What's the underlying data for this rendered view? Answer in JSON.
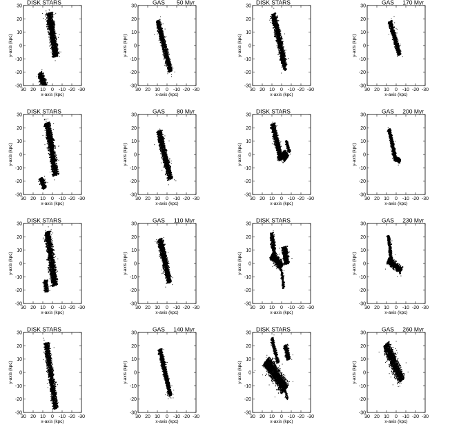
{
  "figure": {
    "rows": 4,
    "cols": 4
  },
  "chart_data": [
    {
      "type": "scatter",
      "panel_title": "DISK STARS",
      "time_label": "",
      "xlabel": "x-axis (kpc)",
      "ylabel": "y-axis (kpc)",
      "xlim": [
        30,
        -30
      ],
      "ylim": [
        -30,
        30
      ],
      "xticks": [
        30,
        20,
        10,
        0,
        -10,
        -20,
        -30
      ],
      "yticks": [
        -30,
        -20,
        -10,
        0,
        10,
        20,
        30
      ],
      "color": "#000000",
      "blobs": [
        {
          "x0": 3,
          "y0": 23,
          "x1": -3,
          "y1": -7,
          "width": 8,
          "count": 1400
        },
        {
          "x0": 13,
          "y0": -21,
          "x1": 8,
          "y1": -30,
          "width": 7,
          "count": 400
        }
      ]
    },
    {
      "type": "scatter",
      "panel_title": "GAS",
      "time_label": "50 Myr",
      "xlabel": "x-axis (kpc)",
      "ylabel": "y-axis (kpc)",
      "xlim": [
        30,
        -30
      ],
      "ylim": [
        -30,
        30
      ],
      "xticks": [
        30,
        20,
        10,
        0,
        -10,
        -20,
        -30
      ],
      "yticks": [
        -30,
        -20,
        -10,
        0,
        10,
        20,
        30
      ],
      "color": "#000000",
      "blobs": [
        {
          "x0": 9,
          "y0": 17,
          "x1": -3,
          "y1": -18,
          "width": 6,
          "count": 1200
        }
      ]
    },
    {
      "type": "scatter",
      "panel_title": "DISK STARS",
      "time_label": "",
      "xlabel": "x-axis (kpc)",
      "ylabel": "y-axis (kpc)",
      "xlim": [
        30,
        -30
      ],
      "ylim": [
        -30,
        30
      ],
      "xticks": [
        30,
        20,
        10,
        0,
        -10,
        -20,
        -30
      ],
      "yticks": [
        -30,
        -20,
        -10,
        0,
        10,
        20,
        30
      ],
      "color": "#000000",
      "blobs": [
        {
          "x0": 8,
          "y0": 22,
          "x1": -3,
          "y1": -14,
          "width": 7,
          "count": 1300
        },
        {
          "x0": 1,
          "y0": -10,
          "x1": -4,
          "y1": -18,
          "width": 3,
          "count": 150
        }
      ]
    },
    {
      "type": "scatter",
      "panel_title": "GAS",
      "time_label": "170 Myr",
      "xlabel": "x-axis (kpc)",
      "ylabel": "y-axis (kpc)",
      "xlim": [
        30,
        -30
      ],
      "ylim": [
        -30,
        30
      ],
      "xticks": [
        30,
        20,
        10,
        0,
        -10,
        -20,
        -30
      ],
      "yticks": [
        -30,
        -20,
        -10,
        0,
        10,
        20,
        30
      ],
      "color": "#000000",
      "blobs": [
        {
          "x0": 6,
          "y0": 17,
          "x1": -3,
          "y1": -6,
          "width": 5,
          "count": 900
        }
      ]
    },
    {
      "type": "scatter",
      "panel_title": "DISK STARS",
      "time_label": "",
      "xlabel": "x-axis (kpc)",
      "ylabel": "y-axis (kpc)",
      "xlim": [
        30,
        -30
      ],
      "ylim": [
        -30,
        30
      ],
      "xticks": [
        30,
        20,
        10,
        0,
        -10,
        -20,
        -30
      ],
      "yticks": [
        -30,
        -20,
        -10,
        0,
        10,
        20,
        30
      ],
      "color": "#000000",
      "blobs": [
        {
          "x0": 5,
          "y0": 22,
          "x1": -3,
          "y1": -14,
          "width": 8,
          "count": 1400
        },
        {
          "x0": 12,
          "y0": -18,
          "x1": 8,
          "y1": -25,
          "width": 6,
          "count": 300
        }
      ]
    },
    {
      "type": "scatter",
      "panel_title": "GAS",
      "time_label": "80 Myr",
      "xlabel": "x-axis (kpc)",
      "ylabel": "y-axis (kpc)",
      "xlim": [
        30,
        -30
      ],
      "ylim": [
        -30,
        30
      ],
      "xticks": [
        30,
        20,
        10,
        0,
        -10,
        -20,
        -30
      ],
      "yticks": [
        -30,
        -20,
        -10,
        0,
        10,
        20,
        30
      ],
      "color": "#000000",
      "blobs": [
        {
          "x0": 8,
          "y0": 16,
          "x1": -3,
          "y1": -17,
          "width": 7,
          "count": 1300
        }
      ]
    },
    {
      "type": "scatter",
      "panel_title": "DISK STARS",
      "time_label": "",
      "xlabel": "x-axis (kpc)",
      "ylabel": "y-axis (kpc)",
      "xlim": [
        30,
        -30
      ],
      "ylim": [
        -30,
        30
      ],
      "xticks": [
        30,
        20,
        10,
        0,
        -10,
        -20,
        -30
      ],
      "yticks": [
        -30,
        -20,
        -10,
        0,
        10,
        20,
        30
      ],
      "color": "#000000",
      "blobs": [
        {
          "x0": 9,
          "y0": 22,
          "x1": 1,
          "y1": -3,
          "width": 6,
          "count": 900
        },
        {
          "x0": -1,
          "y0": 1,
          "x1": -5,
          "y1": -3,
          "width": 8,
          "count": 600
        },
        {
          "x0": -5,
          "y0": 10,
          "x1": -8,
          "y1": 2,
          "width": 3,
          "count": 150
        }
      ]
    },
    {
      "type": "scatter",
      "panel_title": "GAS",
      "time_label": "200 Myr",
      "xlabel": "x-axis (kpc)",
      "ylabel": "y-axis (kpc)",
      "xlim": [
        30,
        -30
      ],
      "ylim": [
        -30,
        30
      ],
      "xticks": [
        30,
        20,
        10,
        0,
        -10,
        -20,
        -30
      ],
      "yticks": [
        -30,
        -20,
        -10,
        0,
        10,
        20,
        30
      ],
      "color": "#000000",
      "blobs": [
        {
          "x0": 7,
          "y0": 18,
          "x1": 1,
          "y1": -3,
          "width": 4,
          "count": 700
        },
        {
          "x0": 1,
          "y0": -3,
          "x1": -4,
          "y1": -5,
          "width": 4,
          "count": 300
        }
      ]
    },
    {
      "type": "scatter",
      "panel_title": "DISK STARS",
      "time_label": "",
      "xlabel": "x-axis (kpc)",
      "ylabel": "y-axis (kpc)",
      "xlim": [
        30,
        -30
      ],
      "ylim": [
        -30,
        30
      ],
      "xticks": [
        30,
        20,
        10,
        0,
        -10,
        -20,
        -30
      ],
      "yticks": [
        -30,
        -20,
        -10,
        0,
        10,
        20,
        30
      ],
      "color": "#000000",
      "blobs": [
        {
          "x0": 5,
          "y0": 22,
          "x1": -2,
          "y1": -15,
          "width": 8,
          "count": 1400
        },
        {
          "x0": 7,
          "y0": -13,
          "x1": 6,
          "y1": -21,
          "width": 5,
          "count": 300
        }
      ]
    },
    {
      "type": "scatter",
      "panel_title": "GAS",
      "time_label": "110 Myr",
      "xlabel": "x-axis (kpc)",
      "ylabel": "y-axis (kpc)",
      "xlim": [
        30,
        -30
      ],
      "ylim": [
        -30,
        30
      ],
      "xticks": [
        30,
        20,
        10,
        0,
        -10,
        -20,
        -30
      ],
      "yticks": [
        -30,
        -20,
        -10,
        0,
        10,
        20,
        30
      ],
      "color": "#000000",
      "blobs": [
        {
          "x0": 7,
          "y0": 17,
          "x1": -2,
          "y1": -13,
          "width": 7,
          "count": 1200
        }
      ]
    },
    {
      "type": "scatter",
      "panel_title": "DISK STARS",
      "time_label": "",
      "xlabel": "x-axis (kpc)",
      "ylabel": "y-axis (kpc)",
      "xlim": [
        30,
        -30
      ],
      "ylim": [
        -30,
        30
      ],
      "xticks": [
        30,
        20,
        10,
        0,
        -10,
        -20,
        -30
      ],
      "yticks": [
        -30,
        -20,
        -10,
        0,
        10,
        20,
        30
      ],
      "color": "#000000",
      "blobs": [
        {
          "x0": 10,
          "y0": 22,
          "x1": 7,
          "y1": 3,
          "width": 5,
          "count": 500
        },
        {
          "x0": 10,
          "y0": 6,
          "x1": 0,
          "y1": -2,
          "width": 8,
          "count": 700
        },
        {
          "x0": -3,
          "y0": 12,
          "x1": -5,
          "y1": 0,
          "width": 7,
          "count": 500
        },
        {
          "x0": 0,
          "y0": -5,
          "x1": -2,
          "y1": -18,
          "width": 3,
          "count": 150
        }
      ]
    },
    {
      "type": "scatter",
      "panel_title": "GAS",
      "time_label": "230 Myr",
      "xlabel": "x-axis (kpc)",
      "ylabel": "y-axis (kpc)",
      "xlim": [
        30,
        -30
      ],
      "ylim": [
        -30,
        30
      ],
      "xticks": [
        30,
        20,
        10,
        0,
        -10,
        -20,
        -30
      ],
      "yticks": [
        -30,
        -20,
        -10,
        0,
        10,
        20,
        30
      ],
      "color": "#000000",
      "blobs": [
        {
          "x0": 8,
          "y0": 20,
          "x1": 5,
          "y1": 2,
          "width": 4,
          "count": 400
        },
        {
          "x0": 8,
          "y0": 2,
          "x1": -5,
          "y1": -5,
          "width": 7,
          "count": 600
        }
      ]
    },
    {
      "type": "scatter",
      "panel_title": "DISK STARS",
      "time_label": "",
      "xlabel": "x-axis (kpc)",
      "ylabel": "y-axis (kpc)",
      "xlim": [
        30,
        -30
      ],
      "ylim": [
        -30,
        30
      ],
      "xticks": [
        30,
        20,
        10,
        0,
        -10,
        -20,
        -30
      ],
      "yticks": [
        -30,
        -20,
        -10,
        0,
        10,
        20,
        30
      ],
      "color": "#000000",
      "blobs": [
        {
          "x0": 6,
          "y0": 20,
          "x1": -3,
          "y1": -25,
          "width": 7,
          "count": 1400
        }
      ]
    },
    {
      "type": "scatter",
      "panel_title": "GAS",
      "time_label": "140 Myr",
      "xlabel": "x-axis (kpc)",
      "ylabel": "y-axis (kpc)",
      "xlim": [
        30,
        -30
      ],
      "ylim": [
        -30,
        30
      ],
      "xticks": [
        30,
        20,
        10,
        0,
        -10,
        -20,
        -30
      ],
      "yticks": [
        -30,
        -20,
        -10,
        0,
        10,
        20,
        30
      ],
      "color": "#000000",
      "blobs": [
        {
          "x0": 7,
          "y0": 16,
          "x1": -3,
          "y1": -16,
          "width": 5,
          "count": 1100
        }
      ]
    },
    {
      "type": "scatter",
      "panel_title": "DISK STARS",
      "time_label": "",
      "xlabel": "x-axis (kpc)",
      "ylabel": "y-axis (kpc)",
      "xlim": [
        30,
        -30
      ],
      "ylim": [
        -30,
        30
      ],
      "xticks": [
        30,
        20,
        10,
        0,
        -10,
        -20,
        -30
      ],
      "yticks": [
        -30,
        -20,
        -10,
        0,
        10,
        20,
        30
      ],
      "color": "#000000",
      "blobs": [
        {
          "x0": 15,
          "y0": 8,
          "x1": -3,
          "y1": -12,
          "width": 12,
          "count": 1700
        },
        {
          "x0": 10,
          "y0": 25,
          "x1": 4,
          "y1": 8,
          "width": 4,
          "count": 300
        },
        {
          "x0": -4,
          "y0": 20,
          "x1": -7,
          "y1": 10,
          "width": 5,
          "count": 400
        },
        {
          "x0": -3,
          "y0": -12,
          "x1": -6,
          "y1": -20,
          "width": 3,
          "count": 80
        }
      ]
    },
    {
      "type": "scatter",
      "panel_title": "GAS",
      "time_label": "260 Myr",
      "xlabel": "x-axis (kpc)",
      "ylabel": "y-axis (kpc)",
      "xlim": [
        30,
        -30
      ],
      "ylim": [
        -30,
        30
      ],
      "xticks": [
        30,
        20,
        10,
        0,
        -10,
        -20,
        -30
      ],
      "yticks": [
        -30,
        -20,
        -10,
        0,
        10,
        20,
        30
      ],
      "color": "#000000",
      "blobs": [
        {
          "x0": 10,
          "y0": 20,
          "x1": -5,
          "y1": -5,
          "width": 10,
          "count": 1300
        }
      ]
    }
  ]
}
